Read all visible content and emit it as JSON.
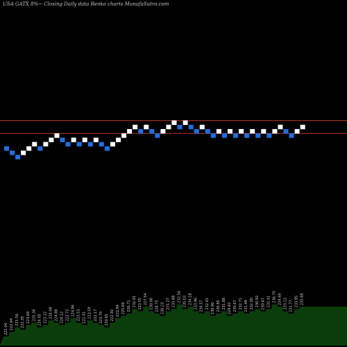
{
  "title": "USA GATX  8%~  Closing Daily data  Renko  charts MunafaSutra.com",
  "chart_data": {
    "type": "renko",
    "title": "USA GATX  8%~  Closing Daily data  Renko  charts MunafaSutra.com",
    "xlabel": "",
    "ylabel": "",
    "grid": false,
    "colors": {
      "up_brick": "#ffffff",
      "down_brick": "#1f6fe0",
      "ref_line": "#c0392b",
      "volume_area": "#0b3d0b",
      "volume_label": "#d0d0d0"
    },
    "bricks": [
      {
        "dir": "down",
        "level": 0
      },
      {
        "dir": "down",
        "level": -1
      },
      {
        "dir": "down",
        "level": -2
      },
      {
        "dir": "up",
        "level": -1
      },
      {
        "dir": "up",
        "level": 0
      },
      {
        "dir": "up",
        "level": 1
      },
      {
        "dir": "down",
        "level": 0
      },
      {
        "dir": "up",
        "level": 1
      },
      {
        "dir": "up",
        "level": 2
      },
      {
        "dir": "up",
        "level": 3
      },
      {
        "dir": "down",
        "level": 2
      },
      {
        "dir": "down",
        "level": 1
      },
      {
        "dir": "up",
        "level": 2
      },
      {
        "dir": "down",
        "level": 1
      },
      {
        "dir": "up",
        "level": 2
      },
      {
        "dir": "down",
        "level": 1
      },
      {
        "dir": "up",
        "level": 2
      },
      {
        "dir": "down",
        "level": 1
      },
      {
        "dir": "down",
        "level": 0
      },
      {
        "dir": "up",
        "level": 1
      },
      {
        "dir": "up",
        "level": 2
      },
      {
        "dir": "up",
        "level": 3
      },
      {
        "dir": "up",
        "level": 4
      },
      {
        "dir": "up",
        "level": 5
      },
      {
        "dir": "down",
        "level": 4
      },
      {
        "dir": "up",
        "level": 5
      },
      {
        "dir": "down",
        "level": 4
      },
      {
        "dir": "down",
        "level": 3
      },
      {
        "dir": "up",
        "level": 4
      },
      {
        "dir": "up",
        "level": 5
      },
      {
        "dir": "up",
        "level": 6
      },
      {
        "dir": "down",
        "level": 5
      },
      {
        "dir": "up",
        "level": 6
      },
      {
        "dir": "down",
        "level": 5
      },
      {
        "dir": "down",
        "level": 4
      },
      {
        "dir": "up",
        "level": 5
      },
      {
        "dir": "down",
        "level": 4
      },
      {
        "dir": "down",
        "level": 3
      },
      {
        "dir": "up",
        "level": 4
      },
      {
        "dir": "down",
        "level": 3
      },
      {
        "dir": "up",
        "level": 4
      },
      {
        "dir": "down",
        "level": 3
      },
      {
        "dir": "up",
        "level": 4
      },
      {
        "dir": "down",
        "level": 3
      },
      {
        "dir": "up",
        "level": 4
      },
      {
        "dir": "down",
        "level": 3
      },
      {
        "dir": "up",
        "level": 4
      },
      {
        "dir": "down",
        "level": 3
      },
      {
        "dir": "up",
        "level": 4
      },
      {
        "dir": "up",
        "level": 5
      },
      {
        "dir": "down",
        "level": 4
      },
      {
        "dir": "down",
        "level": 3
      },
      {
        "dir": "up",
        "level": 4
      },
      {
        "dir": "up",
        "level": 5
      }
    ],
    "reference_lines_level": [
      6.5,
      3.5
    ],
    "volume": [
      4,
      6,
      8,
      7,
      9,
      10,
      8,
      9,
      11,
      10,
      9,
      10,
      12,
      10,
      9,
      11,
      10,
      9,
      8,
      10,
      12,
      13,
      14,
      16,
      15,
      17,
      15,
      14,
      13,
      15,
      16,
      18,
      16,
      17,
      15,
      14,
      15,
      13,
      14,
      15,
      13,
      14,
      15,
      14,
      15,
      16,
      15,
      16,
      18,
      17,
      15,
      14,
      16,
      17
    ],
    "date_labels": [
      "222.04",
      "222.94",
      "221.56",
      "222.35",
      "223.69",
      "225.36",
      "224.05",
      "223.22",
      "224.08",
      "224.88",
      "224.12",
      "222.73",
      "224.86",
      "223.53",
      "222.41",
      "223.59",
      "222.17",
      "223.74",
      "220.65",
      "222.92",
      "222.84",
      "225.69",
      "226.71",
      "232.91",
      "233.55",
      "227.54",
      "230.00",
      "228.75",
      "230.23",
      "231.27",
      "233.88",
      "232.56",
      "235.03",
      "234.18",
      "233.96",
      "234.57",
      "232.01",
      "230.90",
      "230.85",
      "231.88",
      "229.82",
      "230.67",
      "232.71",
      "231.49",
      "232.00",
      "230.92",
      "230.67",
      "232.41",
      "236.70",
      "234.60",
      "233.13",
      "231.77",
      "233.95",
      "235.68"
    ]
  }
}
